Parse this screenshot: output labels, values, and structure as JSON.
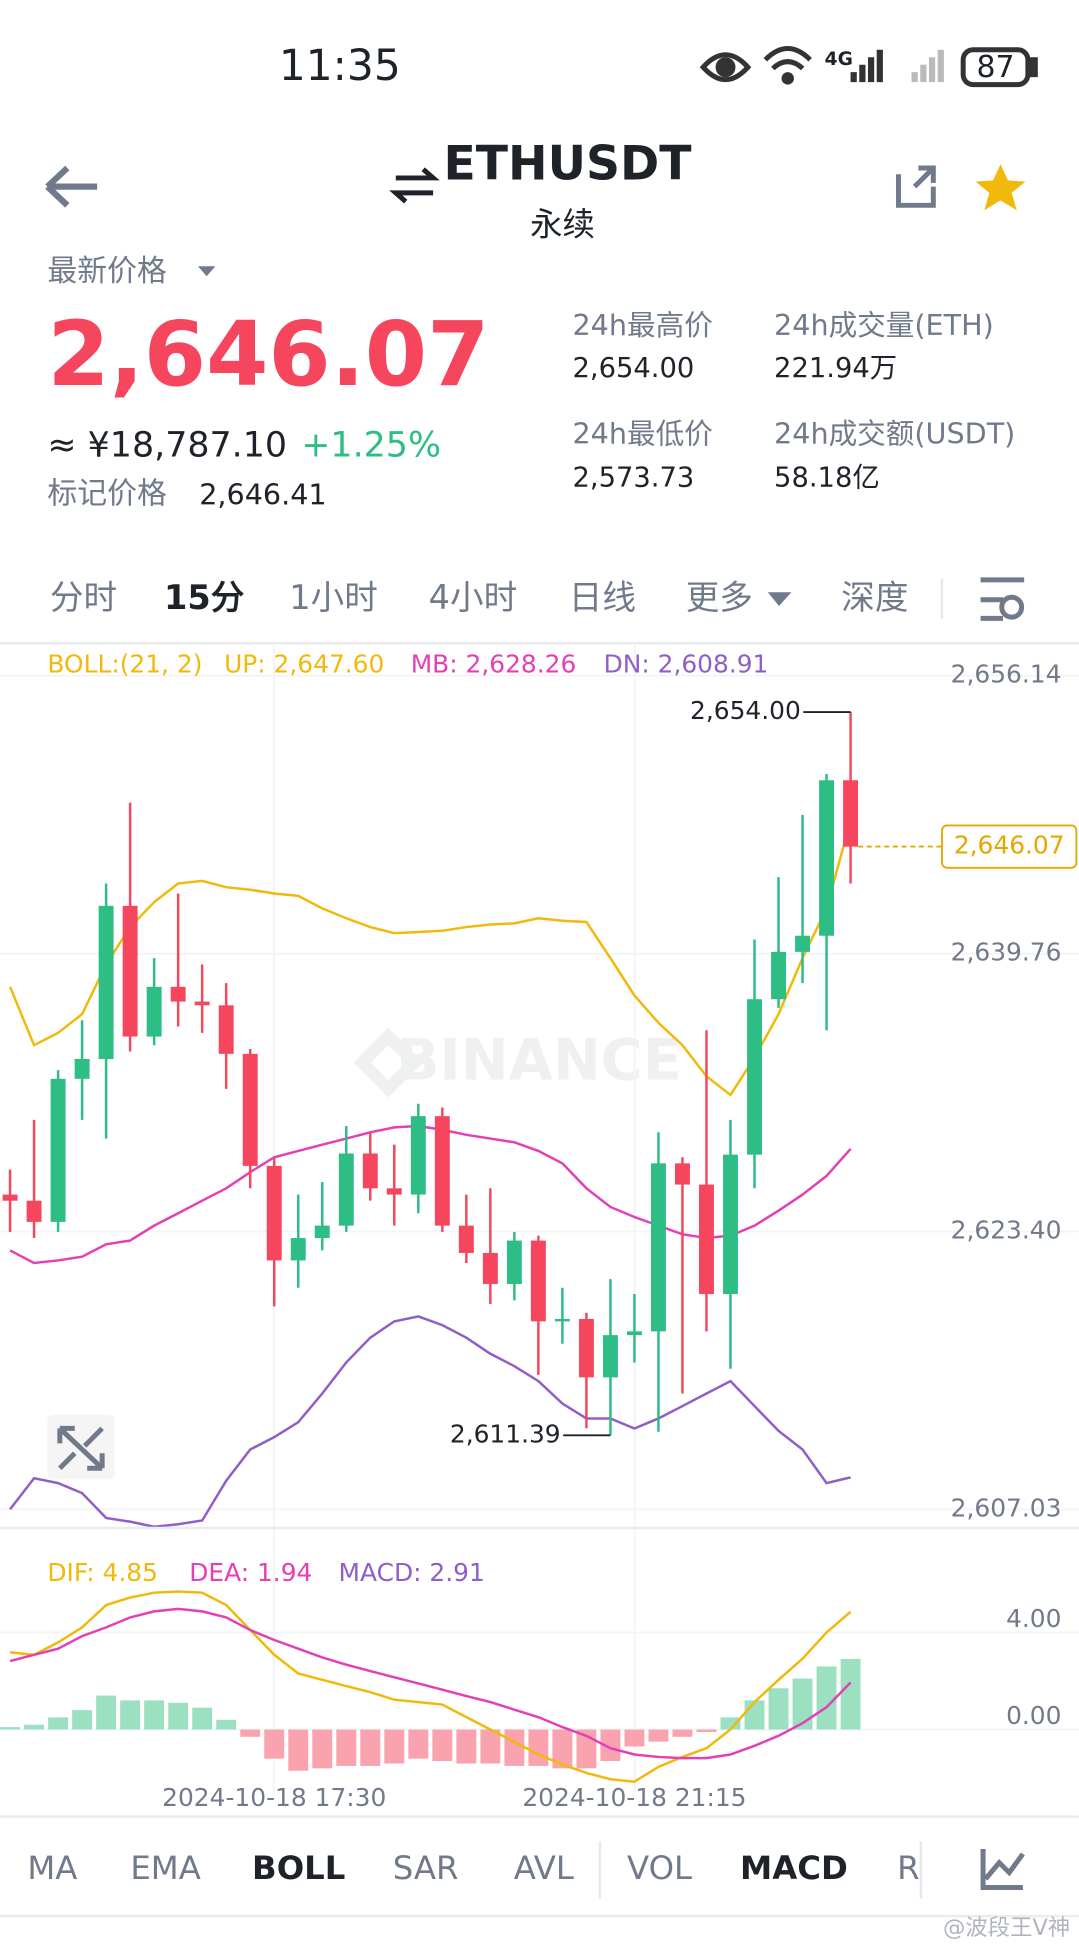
{
  "status_bar": {
    "time": "11:35",
    "network": "4G",
    "battery": "87"
  },
  "header": {
    "symbol": "ETHUSDT",
    "contract": "永续"
  },
  "price": {
    "label": "最新价格",
    "last": "2,646.07",
    "cny": "≈ ¥18,787.10",
    "change": "+1.25%",
    "mark_label": "标记价格",
    "mark": "2,646.41"
  },
  "stats": [
    {
      "label": "24h最高价",
      "value": "2,654.00"
    },
    {
      "label": "24h成交量(ETH)",
      "value": "221.94万"
    },
    {
      "label": "24h最低价",
      "value": "2,573.73"
    },
    {
      "label": "24h成交额(USDT)",
      "value": "58.18亿"
    }
  ],
  "tabs": [
    "分时",
    "15分",
    "1小时",
    "4小时",
    "日线",
    "更多",
    "深度"
  ],
  "active_tab": 1,
  "indicator_tabs": [
    "MA",
    "EMA",
    "BOLL",
    "SAR",
    "AVL",
    "VOL",
    "MACD",
    "R"
  ],
  "active_indicators": [
    2,
    6
  ],
  "watermark": "BINANCE",
  "footer_watermark": "@波段王V神",
  "chart_data": [
    {
      "type": "candlestick",
      "indicator": "BOLL:(21, 2)",
      "open": [
        2625.57,
        2625.21,
        2623.96,
        2632.39,
        2633.56,
        2642.58,
        2634.88,
        2637.81,
        2636.94,
        2636.72,
        2633.86,
        2627.26,
        2621.69,
        2623.01,
        2623.74,
        2627.99,
        2625.94,
        2625.57,
        2630.19,
        2623.74,
        2622.13,
        2620.3,
        2622.86,
        2618.1,
        2618.24,
        2614.8,
        2617.29,
        2617.51,
        2627.41,
        2626.16,
        2619.71,
        2627.92,
        2637.08,
        2639.87,
        2640.82,
        2649.98
      ],
      "high": [
        2627.04,
        2629.97,
        2632.9,
        2635.84,
        2643.9,
        2648.66,
        2639.5,
        2643.31,
        2639.13,
        2638.03,
        2634.15,
        2627.77,
        2625.57,
        2626.31,
        2629.61,
        2629.24,
        2628.51,
        2630.92,
        2630.7,
        2625.57,
        2625.94,
        2623.37,
        2623.15,
        2620.08,
        2618.61,
        2620.59,
        2619.71,
        2629.24,
        2627.77,
        2635.25,
        2629.97,
        2640.6,
        2644.27,
        2647.93,
        2650.35,
        2654.0
      ],
      "low": [
        2623.37,
        2623.01,
        2623.37,
        2629.97,
        2628.87,
        2634.0,
        2634.37,
        2635.47,
        2635.1,
        2631.8,
        2625.94,
        2618.98,
        2620.08,
        2622.28,
        2623.37,
        2625.21,
        2623.74,
        2624.47,
        2623.37,
        2621.54,
        2619.12,
        2619.34,
        2614.95,
        2616.78,
        2611.8,
        2611.39,
        2615.68,
        2611.6,
        2613.85,
        2617.51,
        2615.31,
        2625.94,
        2636.57,
        2638.03,
        2635.25,
        2643.9
      ],
      "close": [
        2625.21,
        2623.96,
        2632.39,
        2633.56,
        2642.58,
        2634.88,
        2637.81,
        2636.94,
        2636.72,
        2633.86,
        2627.26,
        2621.69,
        2623.01,
        2623.74,
        2627.99,
        2625.94,
        2625.57,
        2630.19,
        2623.74,
        2622.13,
        2620.3,
        2622.86,
        2618.1,
        2618.24,
        2614.8,
        2617.29,
        2617.51,
        2627.41,
        2626.16,
        2619.71,
        2627.92,
        2637.08,
        2639.87,
        2640.82,
        2649.98,
        2646.07
      ],
      "up_color": "#2ebd85",
      "down_color": "#f6465d",
      "series": [
        {
          "name": "UP: 2,647.60",
          "color": "#f0b90b",
          "values": [
            2637.81,
            2634.37,
            2635.1,
            2636.2,
            2639.13,
            2641.33,
            2642.8,
            2643.9,
            2644.05,
            2643.68,
            2643.53,
            2643.31,
            2643.17,
            2642.43,
            2641.85,
            2641.33,
            2640.97,
            2641.04,
            2641.11,
            2641.33,
            2641.48,
            2641.55,
            2641.85,
            2641.7,
            2641.63,
            2639.5,
            2637.3,
            2635.69,
            2634.37,
            2632.54,
            2631.44,
            2633.64,
            2636.2,
            2639.5,
            2642.43,
            2647.6
          ]
        },
        {
          "name": "MB: 2,628.26",
          "color": "#e440b5",
          "values": [
            2622.28,
            2621.54,
            2621.69,
            2621.91,
            2622.64,
            2622.86,
            2623.74,
            2624.47,
            2625.21,
            2625.94,
            2626.89,
            2627.77,
            2628.14,
            2628.51,
            2628.87,
            2629.24,
            2629.53,
            2629.61,
            2629.39,
            2629.09,
            2628.87,
            2628.65,
            2628.14,
            2627.41,
            2625.94,
            2624.84,
            2624.25,
            2623.74,
            2623.23,
            2623.01,
            2623.15,
            2623.74,
            2624.62,
            2625.57,
            2626.67,
            2628.26
          ]
        },
        {
          "name": "DN: 2,608.91",
          "color": "#8f5fc7",
          "values": [
            2607.03,
            2608.86,
            2608.57,
            2607.98,
            2606.52,
            2606.3,
            2606.0,
            2606.15,
            2606.37,
            2608.71,
            2610.55,
            2611.28,
            2612.16,
            2613.85,
            2615.68,
            2617.14,
            2618.1,
            2618.39,
            2617.88,
            2617.14,
            2616.19,
            2615.46,
            2614.58,
            2613.26,
            2612.38,
            2612.38,
            2611.79,
            2612.38,
            2613.11,
            2613.85,
            2614.58,
            2613.11,
            2611.65,
            2610.55,
            2608.57,
            2608.91
          ]
        }
      ],
      "annotations": [
        {
          "label": "2,654.00",
          "value": 2654.0
        },
        {
          "label": "2,611.39",
          "value": 2611.39
        }
      ],
      "last_price": {
        "value": 2646.07,
        "label": "2,646.07",
        "color": "#e6a700"
      },
      "ylim": [
        2605.9,
        2657.8
      ],
      "yticks": [
        {
          "value": 2656.14,
          "label": "2,656.14"
        },
        {
          "value": 2639.76,
          "label": "2,639.76"
        },
        {
          "value": 2623.4,
          "label": "2,623.40"
        },
        {
          "value": 2607.03,
          "label": "2,607.03"
        }
      ],
      "grid": true
    },
    {
      "type": "macd",
      "categories": [
        null,
        null,
        null,
        null,
        null,
        null,
        null,
        null,
        null,
        null,
        null,
        "2024-10-18 17:30",
        null,
        null,
        null,
        null,
        null,
        null,
        null,
        null,
        null,
        null,
        null,
        null,
        null,
        null,
        "2024-10-18 21:15",
        null,
        null,
        null,
        null,
        null,
        null,
        null,
        null,
        null
      ],
      "series": [
        {
          "name": "DIF: 4.85",
          "color": "#f0b90b",
          "values": [
            3.18,
            3.08,
            3.59,
            4.21,
            5.13,
            5.44,
            5.64,
            5.69,
            5.64,
            5.13,
            4.1,
            3.08,
            2.31,
            2.05,
            1.79,
            1.54,
            1.23,
            1.13,
            1.03,
            0.51,
            0.0,
            -0.51,
            -1.03,
            -1.44,
            -1.79,
            -2.05,
            -2.15,
            -1.54,
            -1.13,
            -0.77,
            0.0,
            1.13,
            2.05,
            2.92,
            4.0,
            4.85
          ]
        },
        {
          "name": "DEA: 1.94",
          "color": "#e440b5",
          "values": [
            2.82,
            3.08,
            3.33,
            3.85,
            4.21,
            4.62,
            4.87,
            4.97,
            4.87,
            4.62,
            4.1,
            3.69,
            3.33,
            2.97,
            2.67,
            2.41,
            2.15,
            1.9,
            1.64,
            1.38,
            1.13,
            0.82,
            0.51,
            0.1,
            -0.26,
            -0.77,
            -1.03,
            -1.13,
            -1.18,
            -1.18,
            -1.03,
            -0.67,
            -0.26,
            0.26,
            0.92,
            1.94
          ]
        }
      ],
      "histogram": {
        "name": "MACD: 2.91",
        "color": "#8f5fc7",
        "up_color": "#9be0c1",
        "down_color": "#f8a3ae",
        "values": [
          0.1,
          0.2,
          0.5,
          0.8,
          1.4,
          1.2,
          1.2,
          1.1,
          0.9,
          0.4,
          -0.3,
          -1.2,
          -1.7,
          -1.6,
          -1.5,
          -1.5,
          -1.4,
          -1.2,
          -1.3,
          -1.4,
          -1.4,
          -1.5,
          -1.5,
          -1.6,
          -1.6,
          -1.3,
          -0.7,
          -0.5,
          -0.3,
          -0.1,
          0.5,
          1.2,
          1.7,
          2.1,
          2.6,
          2.91
        ]
      },
      "ylim": [
        -2.5,
        7.7
      ],
      "yticks": [
        {
          "value": 4,
          "label": "4.00"
        },
        {
          "value": 0,
          "label": "0.00"
        }
      ]
    }
  ]
}
